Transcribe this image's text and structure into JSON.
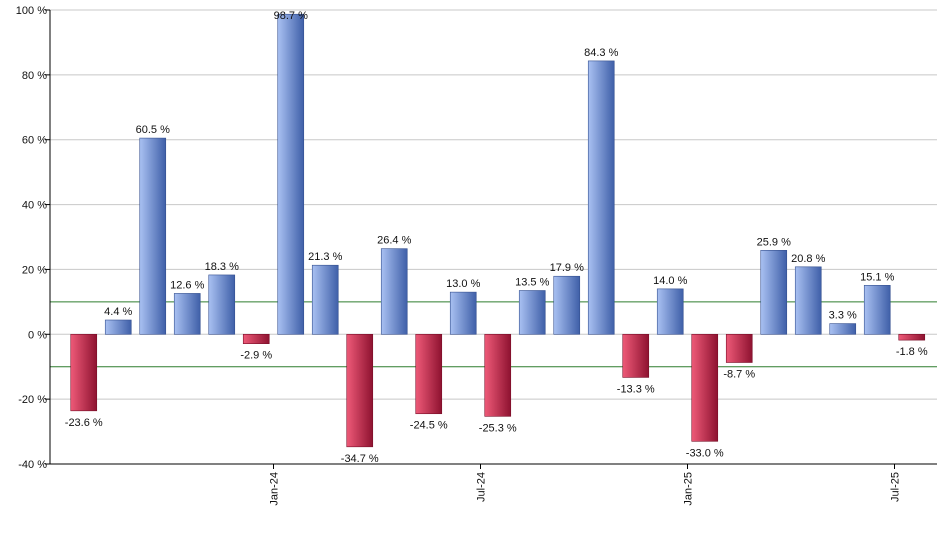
{
  "chart_data": {
    "type": "bar",
    "title": "",
    "xlabel": "",
    "ylabel": "",
    "ylim": [
      -40,
      100
    ],
    "y_ticks": [
      -40,
      -20,
      0,
      20,
      40,
      60,
      80,
      100
    ],
    "y_tick_suffix": " %",
    "grid": "horizontal",
    "reference_lines": [
      10,
      -10
    ],
    "x_tick_labels": [
      {
        "label": "Jan-24",
        "after_index": 5
      },
      {
        "label": "Jul-24",
        "after_index": 11
      },
      {
        "label": "Jan-25",
        "after_index": 17
      },
      {
        "label": "Jul-25",
        "after_index": 23
      }
    ],
    "values": [
      -23.6,
      4.4,
      60.5,
      12.6,
      18.3,
      -2.9,
      98.7,
      21.3,
      -34.7,
      26.4,
      -24.5,
      13.0,
      -25.3,
      13.5,
      17.9,
      84.3,
      -13.3,
      14.0,
      -33.0,
      -8.7,
      25.9,
      20.8,
      3.3,
      15.1,
      -1.8
    ],
    "data_labels": [
      "-23.6 %",
      "4.4 %",
      "60.5 %",
      "12.6 %",
      "18.3 %",
      "-2.9 %",
      "98.7 %",
      "21.3 %",
      "-34.7 %",
      "26.4 %",
      "-24.5 %",
      "13.0 %",
      "-25.3 %",
      "13.5 %",
      "17.9 %",
      "84.3 %",
      "-13.3 %",
      "14.0 %",
      "-33.0 %",
      "-8.7 %",
      "25.9 %",
      "20.8 %",
      "3.3 %",
      "15.1 %",
      "-1.8 %"
    ],
    "colors": {
      "positive_light": "#a9c1f2",
      "positive_dark": "#3f5fa8",
      "negative_light": "#ee5a78",
      "negative_dark": "#8e1230",
      "grid": "#c8c8c8",
      "axis": "#000000",
      "reference_line": "#2f7d2f"
    }
  }
}
